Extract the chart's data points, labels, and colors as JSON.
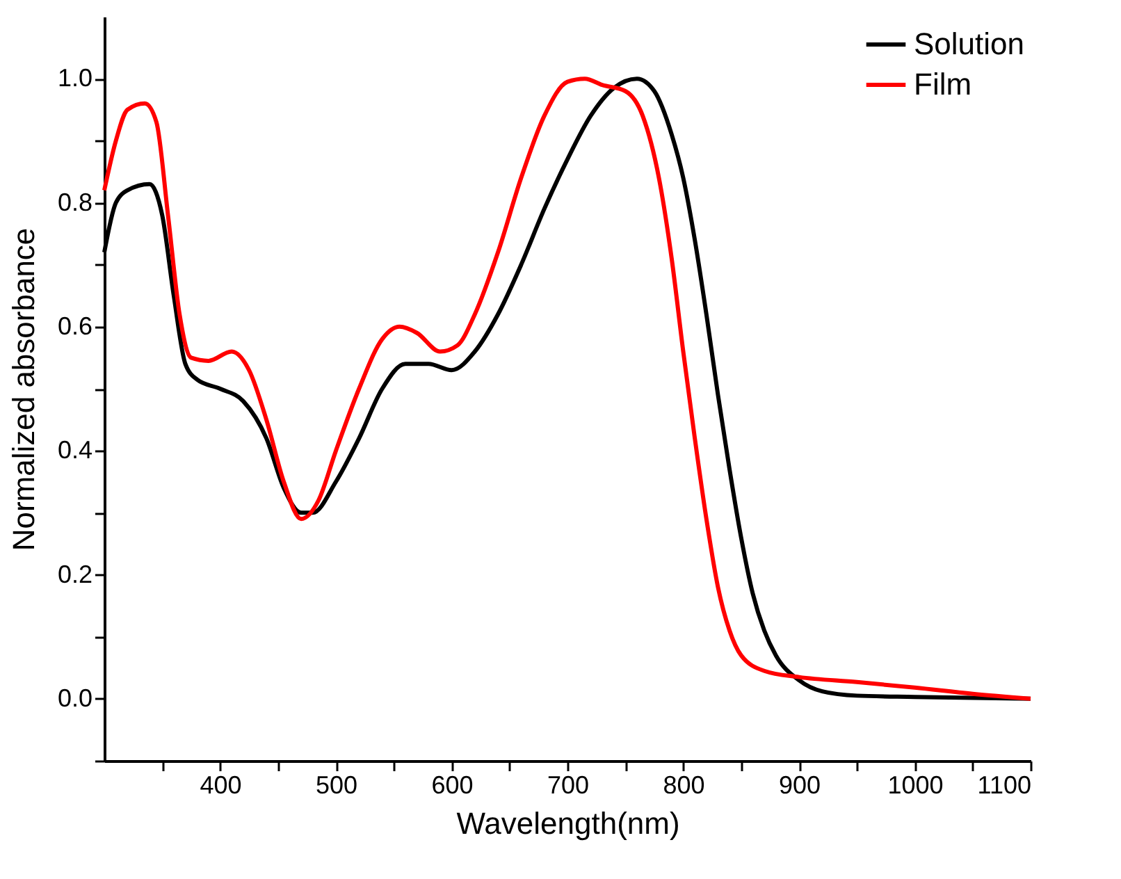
{
  "chart_data": {
    "type": "line",
    "xlabel": "Wavelength(nm)",
    "ylabel": "Normalized absorbance",
    "x": [
      300,
      310,
      320,
      339,
      350,
      360,
      370,
      380,
      400,
      420,
      440,
      455,
      470,
      480,
      500,
      520,
      540,
      560,
      580,
      600,
      620,
      640,
      660,
      680,
      700,
      720,
      740,
      760,
      775,
      790,
      800,
      810,
      820,
      830,
      840,
      850,
      860,
      870,
      880,
      900,
      920,
      950,
      1000,
      1100
    ],
    "series": [
      {
        "name": "Solution",
        "color": "#000000",
        "values": [
          0.72,
          0.8,
          0.82,
          0.83,
          0.78,
          0.65,
          0.54,
          0.515,
          0.5,
          0.48,
          0.42,
          0.34,
          0.3,
          0.3,
          0.35,
          0.42,
          0.5,
          0.54,
          0.54,
          0.53,
          0.56,
          0.62,
          0.7,
          0.79,
          0.87,
          0.94,
          0.985,
          1.0,
          0.98,
          0.91,
          0.84,
          0.74,
          0.62,
          0.49,
          0.37,
          0.26,
          0.17,
          0.11,
          0.07,
          0.03,
          0.012,
          0.005,
          0.003,
          0.0
        ]
      },
      {
        "name": "Film",
        "color": "#ff0000",
        "x": [
          300,
          310,
          320,
          335,
          345,
          355,
          365,
          375,
          390,
          410,
          425,
          440,
          455,
          470,
          485,
          500,
          520,
          540,
          555,
          570,
          590,
          605,
          620,
          640,
          660,
          680,
          700,
          715,
          730,
          750,
          765,
          780,
          790,
          800,
          810,
          820,
          830,
          840,
          850,
          870,
          900,
          950,
          1000,
          1050,
          1100
        ],
        "values": [
          0.82,
          0.9,
          0.95,
          0.96,
          0.93,
          0.78,
          0.62,
          0.55,
          0.545,
          0.56,
          0.53,
          0.45,
          0.35,
          0.29,
          0.32,
          0.4,
          0.5,
          0.58,
          0.6,
          0.59,
          0.56,
          0.57,
          0.62,
          0.72,
          0.84,
          0.94,
          0.995,
          1.0,
          0.99,
          0.98,
          0.94,
          0.83,
          0.71,
          0.56,
          0.42,
          0.29,
          0.18,
          0.11,
          0.07,
          0.045,
          0.035,
          0.027,
          0.018,
          0.008,
          0.0
        ]
      }
    ],
    "xlim": [
      300,
      1100
    ],
    "xticks": [
      {
        "value": 350,
        "label": null
      },
      400,
      {
        "value": 450,
        "label": null
      },
      500,
      {
        "value": 550,
        "label": null
      },
      600,
      {
        "value": 650,
        "label": null
      },
      700,
      {
        "value": 750,
        "label": null
      },
      800,
      {
        "value": 850,
        "label": null
      },
      900,
      {
        "value": 950,
        "label": null
      },
      1000,
      {
        "value": 1050,
        "label": null
      },
      1100
    ],
    "ylim": [
      -0.1,
      1.1
    ],
    "yticks": [
      {
        "value": -0.1,
        "label": null
      },
      {
        "value": 0,
        "label": "0.0"
      },
      {
        "value": 0.1,
        "label": null
      },
      {
        "value": 0.2,
        "label": "0.2"
      },
      {
        "value": 0.3,
        "label": null
      },
      {
        "value": 0.4,
        "label": "0.4"
      },
      {
        "value": 0.5,
        "label": null
      },
      {
        "value": 0.6,
        "label": "0.6"
      },
      {
        "value": 0.7,
        "label": null
      },
      {
        "value": 0.8,
        "label": "0.8"
      },
      {
        "value": 0.9,
        "label": null
      },
      {
        "value": 1.0,
        "label": "1.0"
      }
    ],
    "legend": "top right",
    "grid": false,
    "marker": "none",
    "line_style": "solid"
  }
}
